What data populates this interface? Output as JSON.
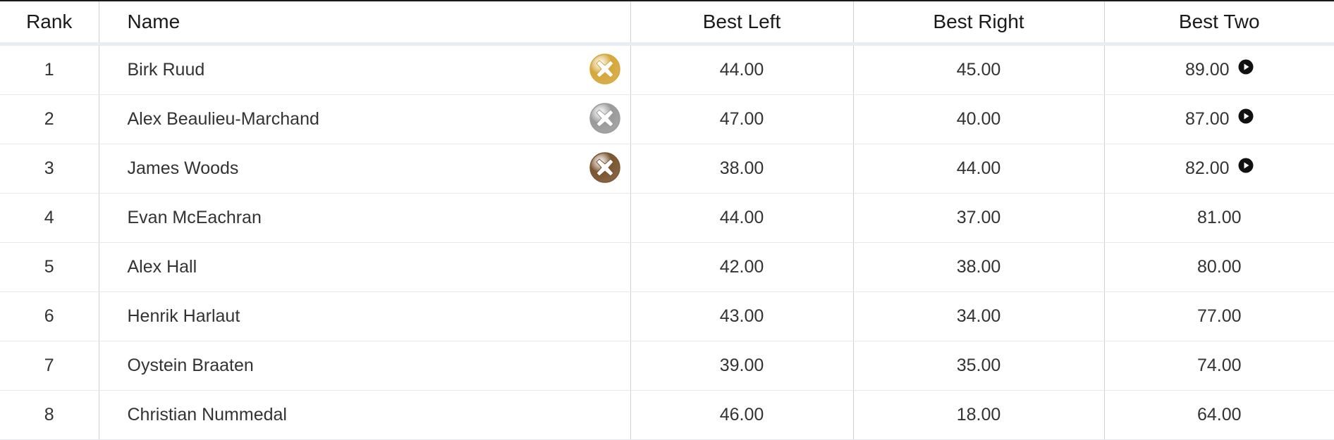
{
  "headers": {
    "rank": "Rank",
    "name": "Name",
    "best_left": "Best Left",
    "best_right": "Best Right",
    "best_two": "Best Two"
  },
  "medal_colors": {
    "gold": "#d4a73a",
    "silver": "#9a9a9a",
    "bronze": "#7a5530"
  },
  "rows": [
    {
      "rank": "1",
      "name": "Birk Ruud",
      "best_left": "44.00",
      "best_right": "45.00",
      "best_two": "89.00",
      "medal": "gold",
      "play": true
    },
    {
      "rank": "2",
      "name": "Alex Beaulieu-Marchand",
      "best_left": "47.00",
      "best_right": "40.00",
      "best_two": "87.00",
      "medal": "silver",
      "play": true
    },
    {
      "rank": "3",
      "name": "James Woods",
      "best_left": "38.00",
      "best_right": "44.00",
      "best_two": "82.00",
      "medal": "bronze",
      "play": true
    },
    {
      "rank": "4",
      "name": "Evan McEachran",
      "best_left": "44.00",
      "best_right": "37.00",
      "best_two": "81.00"
    },
    {
      "rank": "5",
      "name": "Alex Hall",
      "best_left": "42.00",
      "best_right": "38.00",
      "best_two": "80.00"
    },
    {
      "rank": "6",
      "name": "Henrik Harlaut",
      "best_left": "43.00",
      "best_right": "34.00",
      "best_two": "77.00"
    },
    {
      "rank": "7",
      "name": "Oystein Braaten",
      "best_left": "39.00",
      "best_right": "35.00",
      "best_two": "74.00"
    },
    {
      "rank": "8",
      "name": "Christian Nummedal",
      "best_left": "46.00",
      "best_right": "18.00",
      "best_two": "64.00"
    }
  ]
}
